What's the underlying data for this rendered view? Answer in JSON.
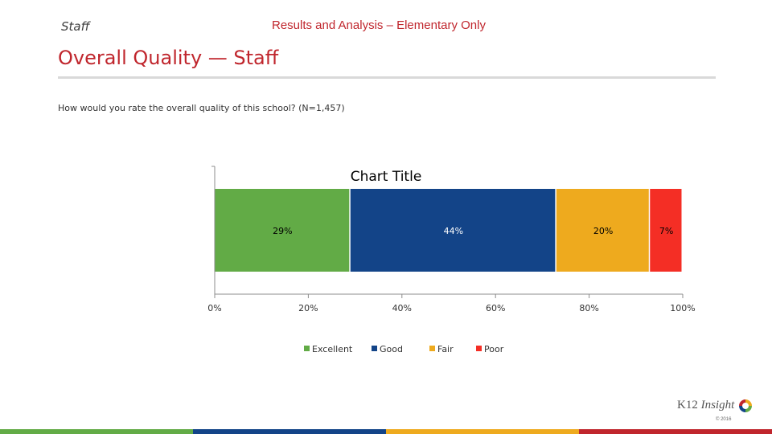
{
  "header": {
    "section": "Staff",
    "title": "Results and Analysis – Elementary Only"
  },
  "page_title": "Overall Quality — Staff",
  "question": "How would you rate the overall quality of this school? (N=1,457)",
  "chart_data": {
    "type": "bar",
    "orientation": "horizontal",
    "stacked": true,
    "title": "Chart Title",
    "xlim": [
      0,
      100
    ],
    "x_ticks": [
      "0%",
      "20%",
      "40%",
      "60%",
      "80%",
      "100%"
    ],
    "x_tick_values": [
      0,
      20,
      40,
      60,
      80,
      100
    ],
    "legend_position": "bottom",
    "grid": false,
    "series": [
      {
        "name": "Excellent",
        "value": 29,
        "label": "29%",
        "color": "#62ab46"
      },
      {
        "name": "Good",
        "value": 44,
        "label": "44%",
        "color": "#134488"
      },
      {
        "name": "Fair",
        "value": 20,
        "label": "20%",
        "color": "#eeaa1e"
      },
      {
        "name": "Poor",
        "value": 7,
        "label": "7%",
        "color": "#f42e25"
      }
    ]
  },
  "logo": {
    "text_a": "K12",
    "text_b": "Insight",
    "copyright": "© 2016"
  },
  "footer_colors": [
    "#62ab46",
    "#134488",
    "#eeaa1e",
    "#c0262d"
  ]
}
